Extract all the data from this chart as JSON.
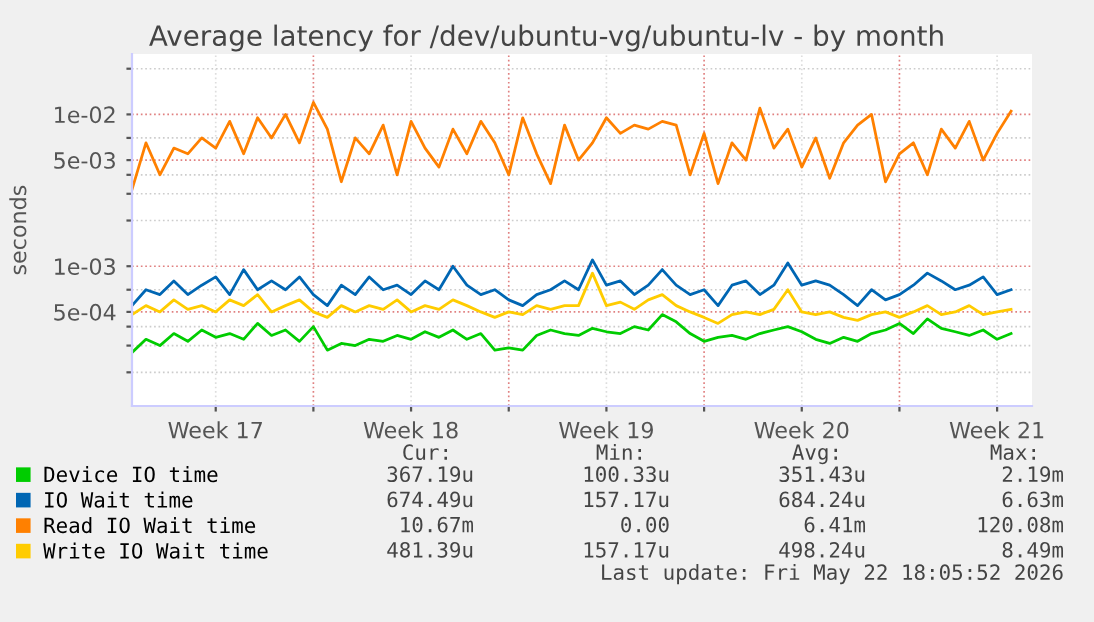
{
  "chart_data": {
    "type": "line",
    "title": "Average latency for /dev/ubuntu-vg/ubuntu-lv - by month",
    "ylabel": "seconds",
    "log": "y",
    "x": [
      "2026-04-20T12:00",
      "2026-04-21T00:00",
      "2026-04-21T12:00",
      "2026-04-22T00:00",
      "2026-04-22T12:00",
      "2026-04-23T00:00",
      "2026-04-23T12:00",
      "2026-04-24T00:00",
      "2026-04-24T12:00",
      "2026-04-25T00:00",
      "2026-04-25T12:00",
      "2026-04-26T00:00",
      "2026-04-26T12:00",
      "2026-04-27T00:00",
      "2026-04-27T12:00",
      "2026-04-28T00:00",
      "2026-04-28T12:00",
      "2026-04-29T00:00",
      "2026-04-29T12:00",
      "2026-04-30T00:00",
      "2026-04-30T12:00",
      "2026-05-01T00:00",
      "2026-05-01T12:00",
      "2026-05-02T00:00",
      "2026-05-02T12:00",
      "2026-05-03T00:00",
      "2026-05-03T12:00",
      "2026-05-04T00:00",
      "2026-05-04T12:00",
      "2026-05-05T00:00",
      "2026-05-05T12:00",
      "2026-05-06T00:00",
      "2026-05-06T12:00",
      "2026-05-07T00:00",
      "2026-05-07T12:00",
      "2026-05-08T00:00",
      "2026-05-08T12:00",
      "2026-05-09T00:00",
      "2026-05-09T12:00",
      "2026-05-10T00:00",
      "2026-05-10T12:00",
      "2026-05-11T00:00",
      "2026-05-11T12:00",
      "2026-05-12T00:00",
      "2026-05-12T12:00",
      "2026-05-13T00:00",
      "2026-05-13T12:00",
      "2026-05-14T00:00",
      "2026-05-14T12:00",
      "2026-05-15T00:00",
      "2026-05-15T12:00",
      "2026-05-16T00:00",
      "2026-05-16T12:00",
      "2026-05-17T00:00",
      "2026-05-17T12:00",
      "2026-05-18T00:00",
      "2026-05-18T12:00",
      "2026-05-19T00:00",
      "2026-05-19T12:00",
      "2026-05-20T00:00",
      "2026-05-20T12:00",
      "2026-05-21T00:00",
      "2026-05-21T12:00",
      "2026-05-22T00:00"
    ],
    "xlim": [
      "2026-04-20T12:00",
      "2026-05-22T18:00"
    ],
    "xticks": [
      {
        "value": "2026-04-23T12:00",
        "label": "Week 17"
      },
      {
        "value": "2026-04-27",
        "label": null
      },
      {
        "value": "2026-04-30T12:00",
        "label": "Week 18"
      },
      {
        "value": "2026-05-04",
        "label": null
      },
      {
        "value": "2026-05-07T12:00",
        "label": "Week 19"
      },
      {
        "value": "2026-05-11",
        "label": null
      },
      {
        "value": "2026-05-14T12:00",
        "label": "Week 20"
      },
      {
        "value": "2026-05-18",
        "label": null
      },
      {
        "value": "2026-05-21T12:00",
        "label": "Week 21"
      }
    ],
    "ylim": [
      0.00012,
      0.025
    ],
    "yticks": [
      {
        "value": 0.0002,
        "label": null
      },
      {
        "value": 0.0003,
        "label": null
      },
      {
        "value": 0.0004,
        "label": null
      },
      {
        "value": 0.0005,
        "label": "5e-04"
      },
      {
        "value": 0.0007,
        "label": null
      },
      {
        "value": 0.001,
        "label": "1e-03"
      },
      {
        "value": 0.002,
        "label": null
      },
      {
        "value": 0.003,
        "label": null
      },
      {
        "value": 0.004,
        "label": null
      },
      {
        "value": 0.005,
        "label": "5e-03"
      },
      {
        "value": 0.007,
        "label": null
      },
      {
        "value": 0.01,
        "label": "1e-02"
      },
      {
        "value": 0.02,
        "label": null
      }
    ],
    "grid": true,
    "legend": "bottom left",
    "series": [
      {
        "name": "Device IO time",
        "color": "#00cc00",
        "values": [
          0.00027,
          0.00033,
          0.0003,
          0.00036,
          0.00032,
          0.00038,
          0.00034,
          0.00036,
          0.00033,
          0.00042,
          0.00035,
          0.00038,
          0.00032,
          0.0004,
          0.00028,
          0.00031,
          0.0003,
          0.00033,
          0.00032,
          0.00035,
          0.00033,
          0.00037,
          0.00034,
          0.00038,
          0.00033,
          0.00036,
          0.00028,
          0.00029,
          0.00028,
          0.00035,
          0.00038,
          0.00036,
          0.00035,
          0.00039,
          0.00037,
          0.00036,
          0.0004,
          0.00038,
          0.00048,
          0.00043,
          0.00036,
          0.00032,
          0.00034,
          0.00035,
          0.00033,
          0.00036,
          0.00038,
          0.0004,
          0.00037,
          0.00033,
          0.00031,
          0.00034,
          0.00032,
          0.00036,
          0.00038,
          0.00042,
          0.00036,
          0.00045,
          0.00039,
          0.00037,
          0.00035,
          0.00038,
          0.00033,
          0.00036
        ]
      },
      {
        "name": "IO Wait time",
        "color": "#0066b3",
        "values": [
          0.00055,
          0.0007,
          0.00065,
          0.0008,
          0.00065,
          0.00075,
          0.00085,
          0.00065,
          0.00095,
          0.0007,
          0.0008,
          0.0007,
          0.00085,
          0.00065,
          0.00055,
          0.00075,
          0.00065,
          0.00085,
          0.0007,
          0.00075,
          0.00065,
          0.0008,
          0.0007,
          0.001,
          0.00075,
          0.00065,
          0.0007,
          0.0006,
          0.00055,
          0.00065,
          0.0007,
          0.0008,
          0.0007,
          0.0011,
          0.00075,
          0.0008,
          0.00065,
          0.00075,
          0.00095,
          0.00075,
          0.00065,
          0.0007,
          0.00055,
          0.00075,
          0.0008,
          0.00065,
          0.00075,
          0.00105,
          0.00075,
          0.0008,
          0.00075,
          0.00065,
          0.00055,
          0.0007,
          0.0006,
          0.00065,
          0.00075,
          0.0009,
          0.0008,
          0.0007,
          0.00075,
          0.00085,
          0.00065,
          0.0007
        ]
      },
      {
        "name": "Read IO Wait time",
        "color": "#ff8000",
        "values": [
          0.0032,
          0.0065,
          0.004,
          0.006,
          0.0055,
          0.007,
          0.006,
          0.009,
          0.0055,
          0.0095,
          0.007,
          0.01,
          0.0065,
          0.012,
          0.008,
          0.0036,
          0.007,
          0.0055,
          0.0085,
          0.004,
          0.009,
          0.006,
          0.0045,
          0.008,
          0.0055,
          0.009,
          0.0065,
          0.004,
          0.0095,
          0.0055,
          0.0035,
          0.0085,
          0.005,
          0.0065,
          0.0095,
          0.0075,
          0.0085,
          0.008,
          0.009,
          0.0085,
          0.004,
          0.0075,
          0.0035,
          0.0065,
          0.005,
          0.011,
          0.006,
          0.008,
          0.0045,
          0.007,
          0.0038,
          0.0065,
          0.0085,
          0.01,
          0.0036,
          0.0055,
          0.0065,
          0.004,
          0.008,
          0.006,
          0.009,
          0.005,
          0.0075,
          0.0105
        ]
      },
      {
        "name": "Write IO Wait time",
        "color": "#ffcc00",
        "values": [
          0.00048,
          0.00055,
          0.0005,
          0.0006,
          0.00052,
          0.00055,
          0.0005,
          0.0006,
          0.00055,
          0.00065,
          0.0005,
          0.00055,
          0.0006,
          0.0005,
          0.00046,
          0.00055,
          0.0005,
          0.00055,
          0.00052,
          0.0006,
          0.0005,
          0.00055,
          0.00052,
          0.0006,
          0.00055,
          0.0005,
          0.00046,
          0.0005,
          0.00048,
          0.00055,
          0.00052,
          0.00055,
          0.00055,
          0.0009,
          0.00055,
          0.00058,
          0.00052,
          0.0006,
          0.00065,
          0.00055,
          0.0005,
          0.00046,
          0.00042,
          0.00048,
          0.0005,
          0.00048,
          0.00052,
          0.0007,
          0.0005,
          0.00048,
          0.0005,
          0.00046,
          0.00044,
          0.00048,
          0.0005,
          0.00046,
          0.0005,
          0.00055,
          0.00048,
          0.0005,
          0.00055,
          0.00048,
          0.0005,
          0.00052
        ]
      }
    ],
    "annotations": [
      "Cur:",
      "Min:",
      "Avg:",
      "Max:",
      "367.19u",
      "100.33u",
      "351.43u",
      "2.19m",
      "674.49u",
      "157.17u",
      "684.24u",
      "6.63m",
      "10.67m",
      "0.00",
      "6.41m",
      "120.08m",
      "481.39u",
      "157.17u",
      "498.24u",
      "8.49m",
      "Last update: Fri May 22 18:05:52 2026"
    ]
  }
}
